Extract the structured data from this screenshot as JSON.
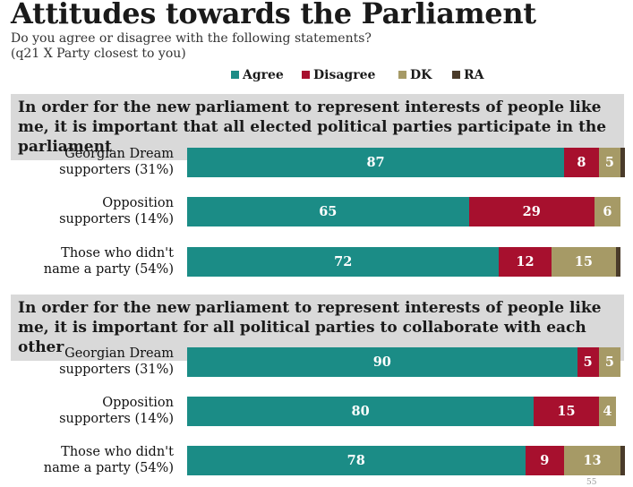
{
  "title": "Attitudes towards the Parliament",
  "subtitle_1": "Do you agree or disagree with the following statements?",
  "subtitle_2": "(q21 X Party closest to you)",
  "legend": [
    {
      "label": "Agree",
      "color": "#1b8c86"
    },
    {
      "label": "Disagree",
      "color": "#a7102e"
    },
    {
      "label": "DK",
      "color": "#a69a66"
    },
    {
      "label": "RA",
      "color": "#4a3b2a"
    }
  ],
  "page_number": "55",
  "chart_data": {
    "type": "bar",
    "orientation": "horizontal",
    "stacked": true,
    "categories": [
      "Agree",
      "Disagree",
      "DK",
      "RA"
    ],
    "panels": [
      {
        "title": "In order for the new parliament to represent interests of people like me, it is important that all elected political parties participate in the parliament",
        "rows": [
          {
            "label_1": "Georgian Dream",
            "label_2": "supporters (31%)",
            "values": [
              87,
              8,
              5,
              1
            ],
            "labels": [
              "87",
              "8",
              "5",
              ""
            ]
          },
          {
            "label_1": "Opposition",
            "label_2": "supporters (14%)",
            "values": [
              65,
              29,
              6,
              0
            ],
            "labels": [
              "65",
              "29",
              "6",
              ""
            ]
          },
          {
            "label_1": "Those who didn't",
            "label_2": "name a party  (54%)",
            "values": [
              72,
              12,
              15,
              1
            ],
            "labels": [
              "72",
              "12",
              "15",
              ""
            ]
          }
        ]
      },
      {
        "title": "In order for the new parliament to represent interests of people like me, it is important for all political parties to collaborate with each other",
        "rows": [
          {
            "label_1": "Georgian Dream",
            "label_2": "supporters (31%)",
            "values": [
              90,
              5,
              5,
              0
            ],
            "labels": [
              "90",
              "5",
              "5",
              ""
            ]
          },
          {
            "label_1": "Opposition",
            "label_2": "supporters (14%)",
            "values": [
              80,
              15,
              4,
              0
            ],
            "labels": [
              "80",
              "15",
              "4",
              ""
            ]
          },
          {
            "label_1": "Those who didn't",
            "label_2": "name a party  (54%)",
            "values": [
              78,
              9,
              13,
              1
            ],
            "labels": [
              "78",
              "9",
              "13",
              ""
            ]
          }
        ]
      }
    ]
  }
}
